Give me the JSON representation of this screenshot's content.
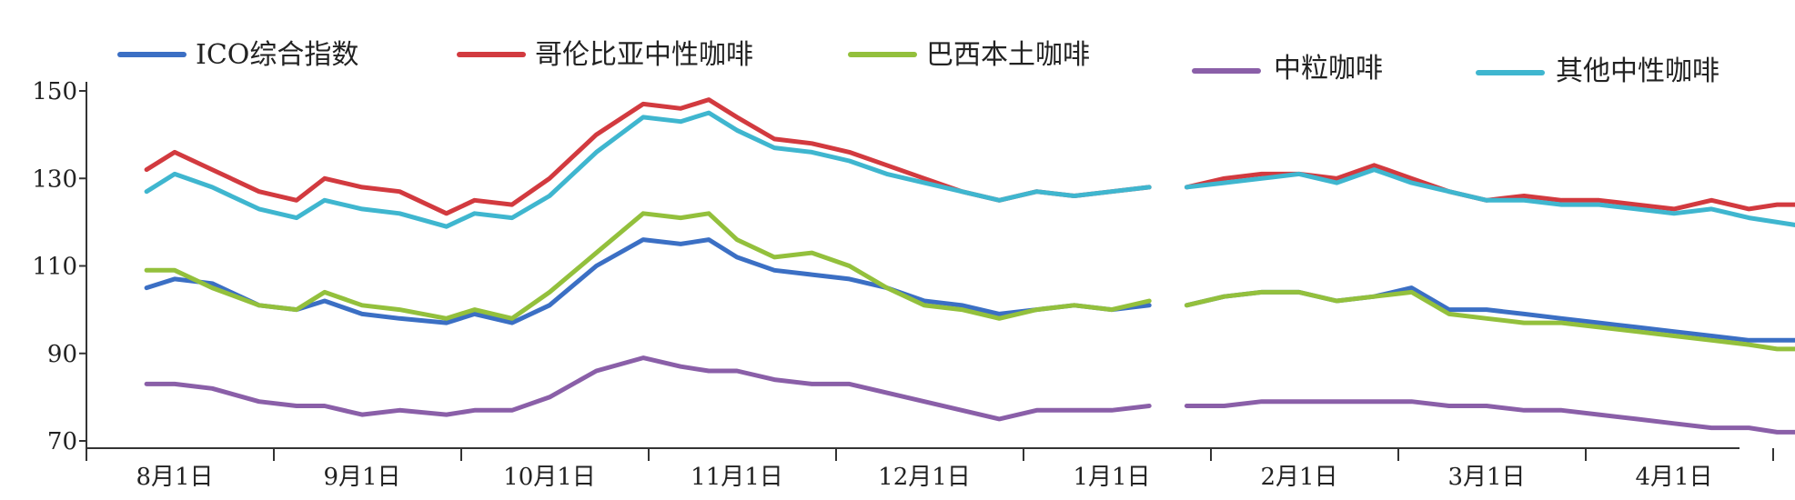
{
  "chart_data": {
    "type": "line",
    "title": "",
    "xlabel": "",
    "ylabel": "",
    "ylim": [
      70,
      150
    ],
    "y_ticks": [
      "70",
      "90",
      "110",
      "130",
      "150"
    ],
    "x_categories": [
      "8月1日",
      "9月1日",
      "10月1日",
      "11月1日",
      "12月1日",
      "1月1日",
      "2月1日",
      "3月1日",
      "4月1日"
    ],
    "x_range": [
      -0.15,
      8.7
    ],
    "gap": [
      5.23,
      5.38
    ],
    "grid": false,
    "legend_position": "top",
    "x": [
      -0.15,
      0.0,
      0.2,
      0.45,
      0.65,
      0.8,
      1.0,
      1.2,
      1.45,
      1.6,
      1.8,
      2.0,
      2.25,
      2.5,
      2.7,
      2.85,
      3.0,
      3.2,
      3.4,
      3.6,
      3.8,
      4.0,
      4.2,
      4.4,
      4.6,
      4.8,
      5.0,
      5.2,
      5.4,
      5.6,
      5.8,
      6.0,
      6.2,
      6.4,
      6.6,
      6.8,
      7.0,
      7.2,
      7.4,
      7.6,
      7.8,
      8.0,
      8.2,
      8.4,
      8.55,
      8.7
    ],
    "series": [
      {
        "name": "ICO综合指数",
        "color": "#3b6fc4",
        "values": [
          105,
          107,
          106,
          101,
          100,
          102,
          99,
          98,
          97,
          99,
          97,
          101,
          110,
          116,
          115,
          116,
          112,
          109,
          108,
          107,
          105,
          102,
          101,
          99,
          100,
          101,
          100,
          101,
          101,
          103,
          104,
          104,
          102,
          103,
          105,
          100,
          100,
          99,
          98,
          97,
          96,
          95,
          94,
          93,
          93,
          93
        ]
      },
      {
        "name": "哥伦比亚中性咖啡",
        "color": "#d23a3f",
        "values": [
          132,
          136,
          132,
          127,
          125,
          130,
          128,
          127,
          122,
          125,
          124,
          130,
          140,
          147,
          146,
          148,
          144,
          139,
          138,
          136,
          133,
          130,
          127,
          125,
          127,
          126,
          127,
          128,
          128,
          130,
          131,
          131,
          130,
          133,
          130,
          127,
          125,
          126,
          125,
          125,
          124,
          123,
          125,
          123,
          124,
          124
        ]
      },
      {
        "name": "巴西本土咖啡",
        "color": "#93c03c",
        "values": [
          109,
          109,
          105,
          101,
          100,
          104,
          101,
          100,
          98,
          100,
          98,
          104,
          113,
          122,
          121,
          122,
          116,
          112,
          113,
          110,
          105,
          101,
          100,
          98,
          100,
          101,
          100,
          102,
          101,
          103,
          104,
          104,
          102,
          103,
          104,
          99,
          98,
          97,
          97,
          96,
          95,
          94,
          93,
          92,
          91,
          91
        ]
      },
      {
        "name": "中粒咖啡",
        "color": "#8a5fa8",
        "values": [
          83,
          83,
          82,
          79,
          78,
          78,
          76,
          77,
          76,
          77,
          77,
          80,
          86,
          89,
          87,
          86,
          86,
          84,
          83,
          83,
          81,
          79,
          77,
          75,
          77,
          77,
          77,
          78,
          78,
          78,
          79,
          79,
          79,
          79,
          79,
          78,
          78,
          77,
          77,
          76,
          75,
          74,
          73,
          73,
          72,
          72
        ]
      },
      {
        "name": "其他中性咖啡",
        "color": "#3fb6cf",
        "values": [
          127,
          131,
          128,
          123,
          121,
          125,
          123,
          122,
          119,
          122,
          121,
          126,
          136,
          144,
          143,
          145,
          141,
          137,
          136,
          134,
          131,
          129,
          127,
          125,
          127,
          126,
          127,
          128,
          128,
          129,
          130,
          131,
          129,
          132,
          129,
          127,
          125,
          125,
          124,
          124,
          123,
          122,
          123,
          121,
          120,
          119
        ]
      }
    ]
  }
}
